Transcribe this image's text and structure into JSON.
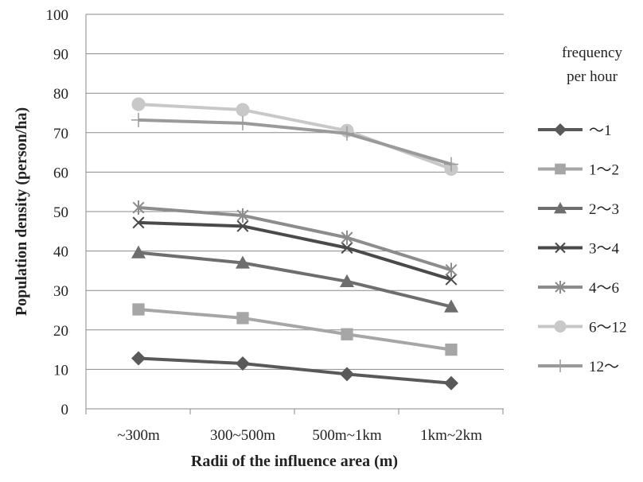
{
  "chart_data": {
    "type": "line",
    "xlabel": "Radii of the influence area (m)",
    "ylabel": "Population density (person/ha)",
    "ylim": [
      0,
      100
    ],
    "yticks": [
      0,
      10,
      20,
      30,
      40,
      50,
      60,
      70,
      80,
      90,
      100
    ],
    "grid": true,
    "legend_position": "right",
    "legend_title_lines": [
      "frequency",
      "per hour"
    ],
    "categories": [
      "~300m",
      "300~500m",
      "500m~1km",
      "1km~2km"
    ],
    "series": [
      {
        "name": "～1",
        "values": [
          12.8,
          11.5,
          8.8,
          6.5
        ],
        "color": "#595959",
        "marker": "diamond"
      },
      {
        "name": "1～2",
        "values": [
          25.2,
          23.0,
          18.9,
          15.0
        ],
        "color": "#a6a6a6",
        "marker": "square"
      },
      {
        "name": "2～3",
        "values": [
          39.6,
          37.0,
          32.3,
          25.9
        ],
        "color": "#6e6e6e",
        "marker": "triangle"
      },
      {
        "name": "3～4",
        "values": [
          47.2,
          46.3,
          40.8,
          32.8
        ],
        "color": "#4a4a4a",
        "marker": "x"
      },
      {
        "name": "4～6",
        "values": [
          51.0,
          49.0,
          43.4,
          35.2
        ],
        "color": "#8c8c8c",
        "marker": "asterisk"
      },
      {
        "name": "6～12",
        "values": [
          77.2,
          75.8,
          70.5,
          60.8
        ],
        "color": "#c8c8c8",
        "marker": "circle"
      },
      {
        "name": "12～",
        "values": [
          73.2,
          72.4,
          69.8,
          62.0
        ],
        "color": "#9a9a9a",
        "marker": "plus"
      }
    ]
  }
}
